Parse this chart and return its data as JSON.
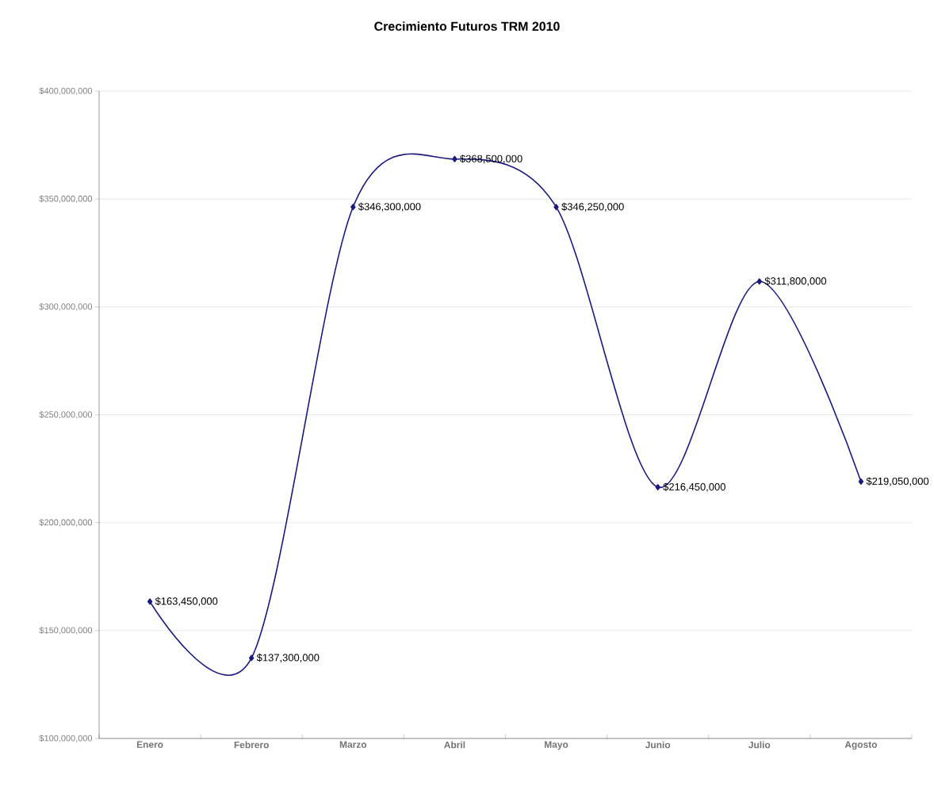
{
  "chart_data": {
    "type": "line",
    "title": "Crecimiento Futuros TRM 2010",
    "categories": [
      "Enero",
      "Febrero",
      "Marzo",
      "Abril",
      "Mayo",
      "Junio",
      "Julio",
      "Agosto"
    ],
    "series": [
      {
        "color": "#1a1a80",
        "values": [
          163450000,
          137300000,
          346300000,
          368500000,
          346250000,
          216450000,
          311800000,
          219050000
        ],
        "value_labels": [
          "$163,450,000",
          "$137,300,000",
          "$346,300,000",
          "$368,500,000",
          "$346,250,000",
          "$216,450,000",
          "$311,800,000",
          "$219,050,000"
        ]
      }
    ],
    "ylim": [
      100000000,
      400000000
    ],
    "yticks": [
      {
        "value": 100000000,
        "label": "$100,000,000"
      },
      {
        "value": 150000000,
        "label": "$150,000,000"
      },
      {
        "value": 200000000,
        "label": "$200,000,000"
      },
      {
        "value": 250000000,
        "label": "$250,000,000"
      },
      {
        "value": 300000000,
        "label": "$300,000,000"
      },
      {
        "value": 350000000,
        "label": "$350,000,000"
      },
      {
        "value": 400000000,
        "label": "$400,000,000"
      }
    ],
    "grid": "y",
    "marker": "diamond",
    "line_style": "solid"
  }
}
